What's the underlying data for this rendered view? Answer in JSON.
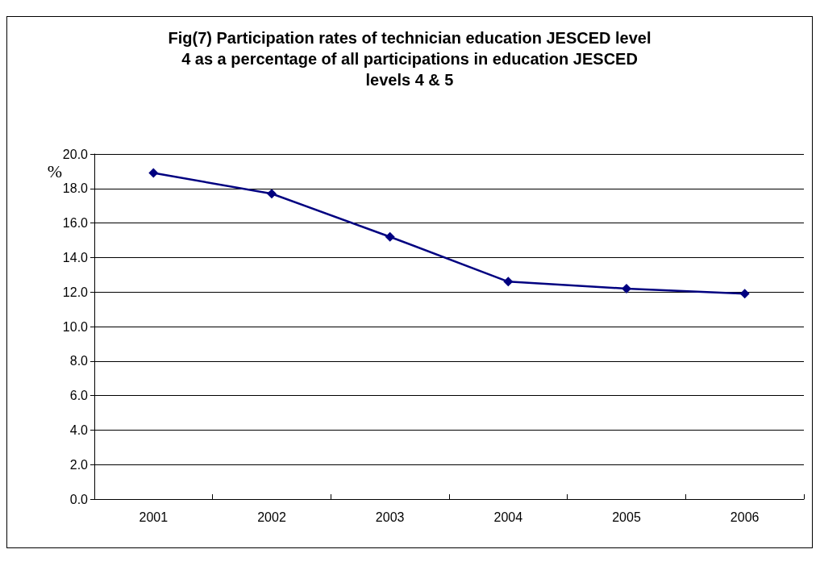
{
  "chart_data": {
    "type": "line",
    "title": "Fig(7) Participation rates of technician education JESCED level\n4 as a percentage of all participations in education JESCED\nlevels 4 & 5",
    "ylabel": "%",
    "categories": [
      "2001",
      "2002",
      "2003",
      "2004",
      "2005",
      "2006"
    ],
    "series": [
      {
        "color": "#000080",
        "values": [
          18.9,
          17.7,
          15.2,
          12.6,
          12.2,
          11.9
        ]
      }
    ],
    "ylim": [
      0,
      20
    ],
    "yticks": [
      {
        "value": 0,
        "label": "0.0"
      },
      {
        "value": 2,
        "label": "2.0"
      },
      {
        "value": 4,
        "label": "4.0"
      },
      {
        "value": 6,
        "label": "6.0"
      },
      {
        "value": 8,
        "label": "8.0"
      },
      {
        "value": 10,
        "label": "10.0"
      },
      {
        "value": 12,
        "label": "12.0"
      },
      {
        "value": 14,
        "label": "14.0"
      },
      {
        "value": 16,
        "label": "16.0"
      },
      {
        "value": 18,
        "label": "18.0"
      },
      {
        "value": 20,
        "label": "20.0"
      }
    ],
    "grid": "y",
    "marker": "diamond",
    "line_style": "solid"
  }
}
